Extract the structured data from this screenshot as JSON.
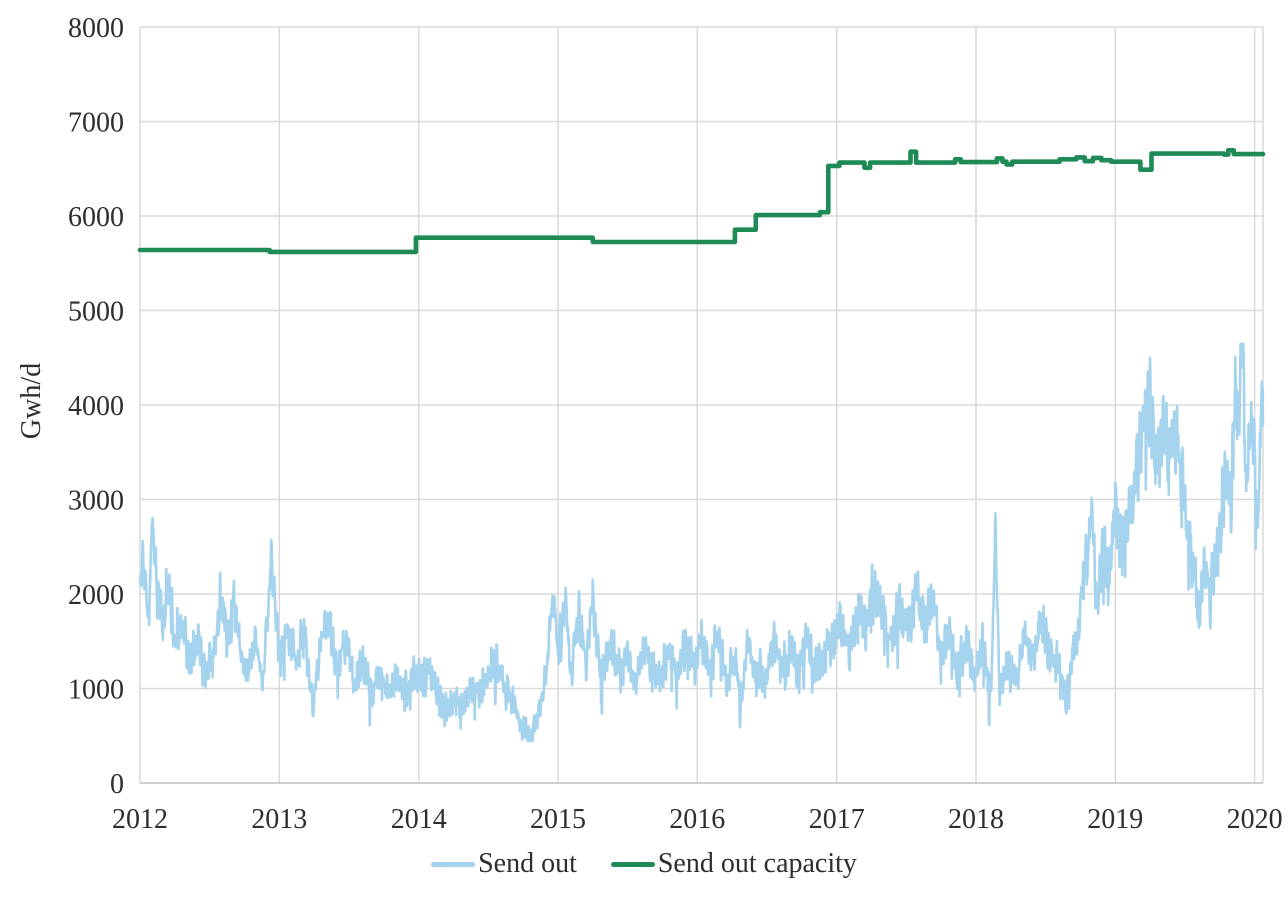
{
  "chart_data": {
    "type": "line",
    "title": "",
    "xlabel": "",
    "ylabel": "Gwh/d",
    "xlim": [
      2012,
      2020.06
    ],
    "ylim": [
      0,
      8000
    ],
    "x_ticks": [
      2012,
      2013,
      2014,
      2015,
      2016,
      2017,
      2018,
      2019,
      2020
    ],
    "y_ticks": [
      0,
      1000,
      2000,
      3000,
      4000,
      5000,
      6000,
      7000,
      8000
    ],
    "grid": true,
    "legend_position": "bottom",
    "series": [
      {
        "name": "Send out",
        "color": "#a5d3ee",
        "style": "noisy-daily",
        "unit": "Gwh/d",
        "keypoints": [
          [
            2012.0,
            1900
          ],
          [
            2012.03,
            2400
          ],
          [
            2012.06,
            1700
          ],
          [
            2012.09,
            2900
          ],
          [
            2012.12,
            2050
          ],
          [
            2012.17,
            1700
          ],
          [
            2012.2,
            2150
          ],
          [
            2012.25,
            1500
          ],
          [
            2012.3,
            1700
          ],
          [
            2012.36,
            1250
          ],
          [
            2012.42,
            1550
          ],
          [
            2012.47,
            1100
          ],
          [
            2012.53,
            1400
          ],
          [
            2012.58,
            2050
          ],
          [
            2012.63,
            1500
          ],
          [
            2012.67,
            2000
          ],
          [
            2012.72,
            1400
          ],
          [
            2012.78,
            1200
          ],
          [
            2012.83,
            1500
          ],
          [
            2012.88,
            1050
          ],
          [
            2012.94,
            2370
          ],
          [
            2013.0,
            1300
          ],
          [
            2013.06,
            1650
          ],
          [
            2013.12,
            1300
          ],
          [
            2013.18,
            1600
          ],
          [
            2013.24,
            800
          ],
          [
            2013.3,
            1550
          ],
          [
            2013.36,
            1700
          ],
          [
            2013.42,
            1250
          ],
          [
            2013.48,
            1600
          ],
          [
            2013.54,
            1000
          ],
          [
            2013.6,
            1300
          ],
          [
            2013.66,
            950
          ],
          [
            2013.72,
            1150
          ],
          [
            2013.78,
            900
          ],
          [
            2013.84,
            1100
          ],
          [
            2013.9,
            950
          ],
          [
            2013.96,
            1150
          ],
          [
            2014.02,
            1050
          ],
          [
            2014.08,
            1250
          ],
          [
            2014.14,
            900
          ],
          [
            2014.2,
            750
          ],
          [
            2014.26,
            900
          ],
          [
            2014.32,
            800
          ],
          [
            2014.38,
            1050
          ],
          [
            2014.44,
            950
          ],
          [
            2014.5,
            1150
          ],
          [
            2014.56,
            1300
          ],
          [
            2014.62,
            1000
          ],
          [
            2014.68,
            900
          ],
          [
            2014.74,
            550
          ],
          [
            2014.8,
            480
          ],
          [
            2014.86,
            700
          ],
          [
            2014.92,
            1250
          ],
          [
            2014.96,
            1950
          ],
          [
            2015.0,
            1350
          ],
          [
            2015.05,
            1900
          ],
          [
            2015.1,
            1150
          ],
          [
            2015.15,
            1850
          ],
          [
            2015.2,
            1250
          ],
          [
            2015.25,
            1950
          ],
          [
            2015.31,
            1050
          ],
          [
            2015.37,
            1450
          ],
          [
            2015.43,
            1250
          ],
          [
            2015.49,
            1350
          ],
          [
            2015.55,
            1100
          ],
          [
            2015.61,
            1450
          ],
          [
            2015.67,
            1250
          ],
          [
            2015.73,
            1100
          ],
          [
            2015.79,
            1400
          ],
          [
            2015.85,
            1150
          ],
          [
            2015.91,
            1400
          ],
          [
            2015.97,
            1250
          ],
          [
            2016.03,
            1450
          ],
          [
            2016.09,
            1200
          ],
          [
            2016.15,
            1600
          ],
          [
            2016.21,
            1000
          ],
          [
            2016.27,
            1350
          ],
          [
            2016.31,
            800
          ],
          [
            2016.37,
            1500
          ],
          [
            2016.43,
            1200
          ],
          [
            2016.49,
            1100
          ],
          [
            2016.55,
            1500
          ],
          [
            2016.61,
            1200
          ],
          [
            2016.67,
            1450
          ],
          [
            2016.73,
            1100
          ],
          [
            2016.79,
            1500
          ],
          [
            2016.85,
            1200
          ],
          [
            2016.91,
            1350
          ],
          [
            2016.97,
            1500
          ],
          [
            2017.03,
            1700
          ],
          [
            2017.09,
            1400
          ],
          [
            2017.15,
            1900
          ],
          [
            2017.21,
            1600
          ],
          [
            2017.27,
            2100
          ],
          [
            2017.33,
            1800
          ],
          [
            2017.39,
            1500
          ],
          [
            2017.45,
            1850
          ],
          [
            2017.51,
            1600
          ],
          [
            2017.57,
            2000
          ],
          [
            2017.63,
            1700
          ],
          [
            2017.69,
            1900
          ],
          [
            2017.75,
            1400
          ],
          [
            2017.81,
            1600
          ],
          [
            2017.87,
            1200
          ],
          [
            2017.93,
            1550
          ],
          [
            2017.99,
            1100
          ],
          [
            2018.05,
            1500
          ],
          [
            2018.11,
            900
          ],
          [
            2018.14,
            2750
          ],
          [
            2018.17,
            950
          ],
          [
            2018.23,
            1300
          ],
          [
            2018.29,
            1050
          ],
          [
            2018.35,
            1600
          ],
          [
            2018.41,
            1300
          ],
          [
            2018.47,
            1700
          ],
          [
            2018.53,
            1350
          ],
          [
            2018.59,
            1250
          ],
          [
            2018.65,
            850
          ],
          [
            2018.7,
            1400
          ],
          [
            2018.74,
            1700
          ],
          [
            2018.79,
            2400
          ],
          [
            2018.83,
            2950
          ],
          [
            2018.87,
            1900
          ],
          [
            2018.91,
            2600
          ],
          [
            2018.95,
            2200
          ],
          [
            2019.0,
            2850
          ],
          [
            2019.05,
            2450
          ],
          [
            2019.1,
            2900
          ],
          [
            2019.15,
            3300
          ],
          [
            2019.2,
            3700
          ],
          [
            2019.25,
            4050
          ],
          [
            2019.3,
            3450
          ],
          [
            2019.35,
            3800
          ],
          [
            2019.4,
            3500
          ],
          [
            2019.45,
            3700
          ],
          [
            2019.5,
            3000
          ],
          [
            2019.55,
            2300
          ],
          [
            2019.6,
            1900
          ],
          [
            2019.64,
            2250
          ],
          [
            2019.68,
            1950
          ],
          [
            2019.72,
            2400
          ],
          [
            2019.76,
            2900
          ],
          [
            2019.8,
            3300
          ],
          [
            2019.83,
            3000
          ],
          [
            2019.86,
            4440
          ],
          [
            2019.88,
            3700
          ],
          [
            2019.91,
            4635
          ],
          [
            2019.94,
            3100
          ],
          [
            2019.97,
            3950
          ],
          [
            2020.0,
            3500
          ],
          [
            2020.02,
            2500
          ],
          [
            2020.045,
            3950
          ],
          [
            2020.06,
            3900
          ]
        ]
      },
      {
        "name": "Send out capacity",
        "color": "#1e8a56",
        "style": "step",
        "unit": "Gwh/d",
        "points": [
          [
            2012.0,
            5640
          ],
          [
            2012.93,
            5620
          ],
          [
            2013.98,
            5770
          ],
          [
            2015.25,
            5725
          ],
          [
            2016.27,
            5855
          ],
          [
            2016.42,
            6010
          ],
          [
            2016.88,
            6040
          ],
          [
            2016.94,
            6530
          ],
          [
            2017.02,
            6565
          ],
          [
            2017.2,
            6510
          ],
          [
            2017.24,
            6565
          ],
          [
            2017.53,
            6680
          ],
          [
            2017.57,
            6565
          ],
          [
            2017.85,
            6600
          ],
          [
            2017.89,
            6570
          ],
          [
            2018.15,
            6610
          ],
          [
            2018.19,
            6575
          ],
          [
            2018.22,
            6545
          ],
          [
            2018.26,
            6575
          ],
          [
            2018.6,
            6600
          ],
          [
            2018.72,
            6620
          ],
          [
            2018.78,
            6580
          ],
          [
            2018.84,
            6615
          ],
          [
            2018.9,
            6590
          ],
          [
            2018.97,
            6575
          ],
          [
            2019.18,
            6490
          ],
          [
            2019.26,
            6660
          ],
          [
            2019.78,
            6650
          ],
          [
            2019.81,
            6695
          ],
          [
            2019.85,
            6655
          ],
          [
            2020.06,
            6655
          ]
        ]
      }
    ],
    "colors": {
      "gridline": "#d9d9d9",
      "axis_line": "#bfbfbf",
      "text": "#2e2e2e",
      "background": "#ffffff"
    }
  }
}
